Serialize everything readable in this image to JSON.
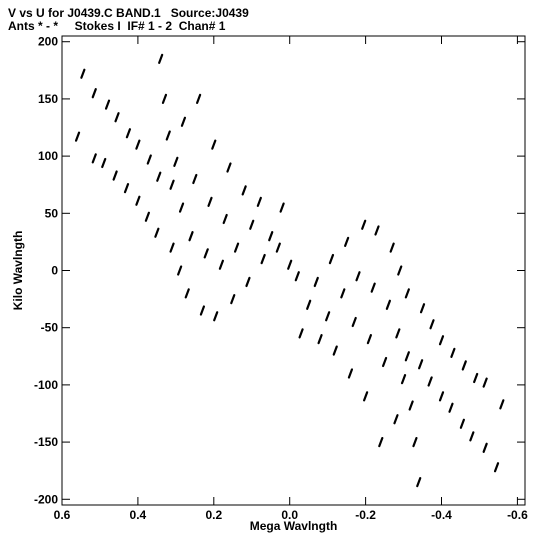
{
  "chart_data": {
    "type": "scatter",
    "title": "V vs U for J0439.C BAND.1   Source:J0439",
    "subtitle": "Ants * - *     Stokes I  IF# 1 - 2  Chan# 1",
    "xlabel": "Mega Wavlngth",
    "ylabel": "Kilo Wavlngth",
    "xlim": [
      0.6,
      -0.62
    ],
    "ylim": [
      -205,
      205
    ],
    "x_ticks": [
      0.6,
      0.4,
      0.2,
      0.0,
      -0.2,
      -0.4,
      -0.6
    ],
    "x_tick_labels": [
      "0.6",
      "0.4",
      "0.2",
      "0.0",
      "-0.2",
      "-0.4",
      "-0.6"
    ],
    "y_ticks": [
      200,
      150,
      100,
      50,
      0,
      -50,
      -100,
      -150,
      -200
    ],
    "y_tick_labels": [
      "200",
      "150",
      "100",
      "50",
      "0",
      "-50",
      "-100",
      "-150",
      "-200"
    ],
    "grid": false,
    "marker_color": "#000000",
    "series": [
      {
        "values": [
          [
            0.559,
            117
          ],
          [
            0.545,
            172
          ],
          [
            0.515,
            98
          ],
          [
            0.515,
            155
          ],
          [
            0.49,
            94
          ],
          [
            0.48,
            145
          ],
          [
            0.46,
            83
          ],
          [
            0.455,
            134
          ],
          [
            0.43,
            72
          ],
          [
            0.425,
            120
          ],
          [
            0.4,
            61
          ],
          [
            0.4,
            110
          ],
          [
            0.375,
            47
          ],
          [
            0.37,
            97
          ],
          [
            0.35,
            33
          ],
          [
            0.345,
            82
          ],
          [
            0.34,
            185
          ],
          [
            0.33,
            150
          ],
          [
            0.32,
            118
          ],
          [
            0.31,
            20
          ],
          [
            0.31,
            75
          ],
          [
            0.3,
            95
          ],
          [
            0.29,
            0
          ],
          [
            0.285,
            55
          ],
          [
            0.28,
            130
          ],
          [
            0.27,
            -20
          ],
          [
            0.26,
            30
          ],
          [
            0.25,
            80
          ],
          [
            0.24,
            150
          ],
          [
            0.23,
            -35
          ],
          [
            0.22,
            15
          ],
          [
            0.21,
            60
          ],
          [
            0.2,
            110
          ],
          [
            0.195,
            -40
          ],
          [
            0.18,
            5
          ],
          [
            0.17,
            45
          ],
          [
            0.16,
            90
          ],
          [
            0.15,
            -25
          ],
          [
            0.14,
            20
          ],
          [
            0.12,
            70
          ],
          [
            0.11,
            -10
          ],
          [
            0.1,
            40
          ],
          [
            0.08,
            60
          ],
          [
            0.07,
            10
          ],
          [
            0.05,
            30
          ],
          [
            0.03,
            20
          ],
          [
            0.02,
            55
          ],
          [
            0.0,
            5
          ],
          [
            -0.02,
            -5
          ],
          [
            -0.03,
            -55
          ],
          [
            -0.05,
            -30
          ],
          [
            -0.07,
            -10
          ],
          [
            -0.08,
            -60
          ],
          [
            -0.1,
            -40
          ],
          [
            -0.11,
            10
          ],
          [
            -0.12,
            -70
          ],
          [
            -0.14,
            -20
          ],
          [
            -0.15,
            25
          ],
          [
            -0.16,
            -90
          ],
          [
            -0.17,
            -45
          ],
          [
            -0.18,
            -5
          ],
          [
            -0.195,
            40
          ],
          [
            -0.2,
            -110
          ],
          [
            -0.21,
            -60
          ],
          [
            -0.22,
            -15
          ],
          [
            -0.23,
            35
          ],
          [
            -0.24,
            -150
          ],
          [
            -0.25,
            -80
          ],
          [
            -0.26,
            -30
          ],
          [
            -0.27,
            20
          ],
          [
            -0.28,
            -130
          ],
          [
            -0.285,
            -55
          ],
          [
            -0.29,
            0
          ],
          [
            -0.3,
            -95
          ],
          [
            -0.31,
            -75
          ],
          [
            -0.31,
            -20
          ],
          [
            -0.32,
            -118
          ],
          [
            -0.33,
            -150
          ],
          [
            -0.34,
            -185
          ],
          [
            -0.345,
            -82
          ],
          [
            -0.35,
            -33
          ],
          [
            -0.37,
            -97
          ],
          [
            -0.375,
            -47
          ],
          [
            -0.4,
            -110
          ],
          [
            -0.4,
            -61
          ],
          [
            -0.425,
            -120
          ],
          [
            -0.43,
            -72
          ],
          [
            -0.455,
            -134
          ],
          [
            -0.46,
            -83
          ],
          [
            -0.48,
            -145
          ],
          [
            -0.49,
            -94
          ],
          [
            -0.515,
            -155
          ],
          [
            -0.515,
            -98
          ],
          [
            -0.545,
            -172
          ],
          [
            -0.559,
            -117
          ]
        ]
      }
    ]
  }
}
